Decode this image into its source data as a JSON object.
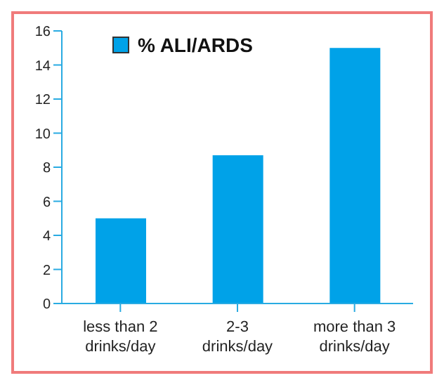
{
  "chart_data": {
    "type": "bar",
    "categories": [
      "less than 2 drinks/day",
      "2-3 drinks/day",
      "more than 3 drinks/day"
    ],
    "series": [
      {
        "name": "% ALI/ARDS",
        "color": "#00a2e8",
        "values": [
          5,
          8.7,
          15
        ]
      }
    ],
    "ylim": [
      0,
      16
    ],
    "yticks": [
      0,
      2,
      4,
      6,
      8,
      10,
      12,
      14,
      16
    ],
    "grid": false,
    "legend": "top left"
  }
}
